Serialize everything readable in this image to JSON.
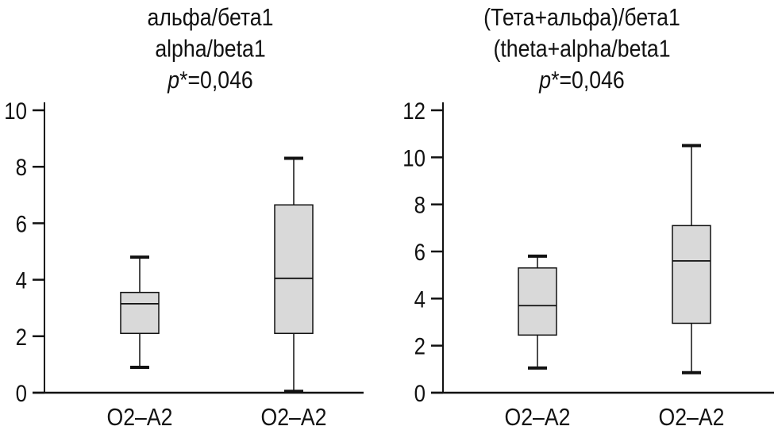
{
  "chart_data": [
    {
      "type": "box",
      "title_lines": [
        "альфа/бета1",
        "alpha/beta1"
      ],
      "p_symbol": "p",
      "p_text": "*=0,046",
      "categories": [
        "O2–A2",
        "O2–A2"
      ],
      "ylim": [
        0,
        10
      ],
      "yticks": [
        0,
        2,
        4,
        6,
        8,
        10
      ],
      "grid": false,
      "boxes": [
        {
          "min": 0.9,
          "q1": 2.1,
          "median": 3.15,
          "q3": 3.55,
          "max": 4.8
        },
        {
          "min": 0.05,
          "q1": 2.1,
          "median": 4.05,
          "q3": 6.65,
          "max": 8.3
        }
      ]
    },
    {
      "type": "box",
      "title_lines": [
        "(Тета+альфа)/бета1",
        "(theta+alpha/beta1"
      ],
      "p_symbol": "p",
      "p_text": "*=0,046",
      "categories": [
        "O2–A2",
        "O2–A2"
      ],
      "ylim": [
        0,
        12
      ],
      "yticks": [
        0,
        2,
        4,
        6,
        8,
        10,
        12
      ],
      "grid": false,
      "boxes": [
        {
          "min": 1.05,
          "q1": 2.45,
          "median": 3.7,
          "q3": 5.3,
          "max": 5.8
        },
        {
          "min": 0.85,
          "q1": 2.95,
          "median": 5.6,
          "q3": 7.1,
          "max": 10.5
        }
      ]
    }
  ],
  "colors": {
    "box_fill": "#d9d9d9",
    "line": "#111111"
  }
}
